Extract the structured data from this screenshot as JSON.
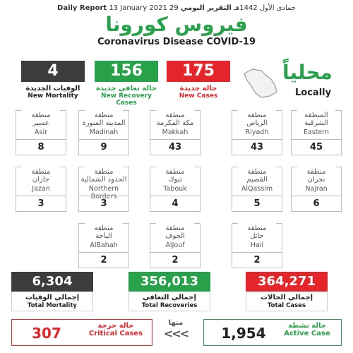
{
  "header": {
    "daily_report_ar": "التقرير اليومي",
    "hijri_date": "29 جمادى الأول 1442هـ",
    "gregorian_date": "13 January 2021",
    "daily_report_en": "Daily Report",
    "title_ar": "فيروس كورونا",
    "title_en": "Coronavirus Disease COVID-19"
  },
  "locally": {
    "ar": "محلياً",
    "en": "Locally"
  },
  "daily": [
    {
      "value": "175",
      "label_ar": "حالة جديدة",
      "label_en": "New Cases",
      "color": "#e4262b"
    },
    {
      "value": "156",
      "label_ar": "حالة تعافي جديدة",
      "label_en": "New Recovery Cases",
      "color": "#27a24a"
    },
    {
      "value": "4",
      "label_ar": "الوفيات الجديدة",
      "label_en": "New Mortality",
      "color": "#3c3c3c"
    }
  ],
  "regions": [
    {
      "ar1": "المنطقة",
      "ar2": "الشرقية",
      "en": "Eastern",
      "count": "45"
    },
    {
      "ar1": "منطقة",
      "ar2": "الرياض",
      "en": "Riyadh",
      "count": "43"
    },
    {
      "ar1": "منطقة",
      "ar2": "مكة المكرمة",
      "en": "Makkah",
      "count": "43"
    },
    {
      "ar1": "منطقة",
      "ar2": "المدينة المنورة",
      "en": "Madinah",
      "count": "9"
    },
    {
      "ar1": "منطقة",
      "ar2": "عسير",
      "en": "Asir",
      "count": "8"
    },
    {
      "ar1": "منطقة",
      "ar2": "نجران",
      "en": "Najran",
      "count": "6"
    },
    {
      "ar1": "منطقة",
      "ar2": "القصيم",
      "en": "AlQassim",
      "count": "5"
    },
    {
      "ar1": "منطقة",
      "ar2": "تبوك",
      "en": "Tabouk",
      "count": "4"
    },
    {
      "ar1": "منطقة",
      "ar2": "الحدود الشمالية",
      "en": "Northern Borders",
      "count": "3"
    },
    {
      "ar1": "منطقة",
      "ar2": "جازان",
      "en": "Jazan",
      "count": "3"
    },
    {
      "ar1": "منطقة",
      "ar2": "حائل",
      "en": "Hail",
      "count": "2"
    },
    {
      "ar1": "منطقة",
      "ar2": "الجوف",
      "en": "AlJouf",
      "count": "2"
    },
    {
      "ar1": "منطقة",
      "ar2": "الباحة",
      "en": "AlBahah",
      "count": "2"
    }
  ],
  "totals": [
    {
      "value": "364,271",
      "label_ar": "إجمالي الحالات",
      "label_en": "Total Cases",
      "color": "#e4262b"
    },
    {
      "value": "356,013",
      "label_ar": "إجمالي التعافي",
      "label_en": "Total Recoveries",
      "color": "#27a24a"
    },
    {
      "value": "6,304",
      "label_ar": "إجمالي الوفيات",
      "label_en": "Total Mortality",
      "color": "#3c3c3c"
    }
  ],
  "active": {
    "value": "1,954",
    "label_ar": "حالة نشطة",
    "label_en": "Active Case",
    "color": "#27a24a"
  },
  "critical": {
    "value": "307",
    "label_ar": "حالة حرجة",
    "label_en": "Critical Cases",
    "color": "#e4262b"
  },
  "including": {
    "ar": "منها",
    "arrows": "<<<"
  }
}
